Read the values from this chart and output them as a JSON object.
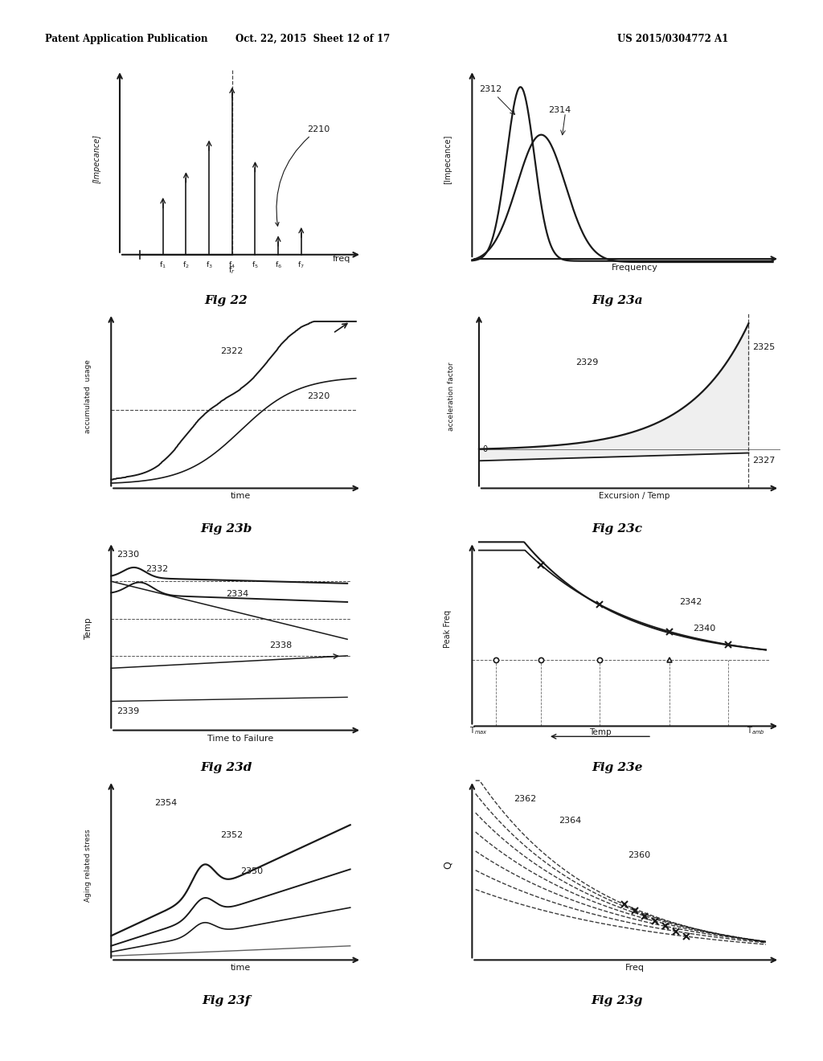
{
  "header_left": "Patent Application Publication",
  "header_mid": "Oct. 22, 2015  Sheet 12 of 17",
  "header_right": "US 2015/0304772 A1",
  "fig22_title": "Fig 22",
  "fig23a_title": "Fig 23a",
  "fig23b_title": "Fig 23b",
  "fig23c_title": "Fig 23c",
  "fig23d_title": "Fig 23d",
  "fig23e_title": "Fig 23e",
  "fig23f_title": "Fig 23f",
  "fig23g_title": "Fig 23g",
  "bg_color": "#ffffff",
  "line_color": "#1a1a1a"
}
